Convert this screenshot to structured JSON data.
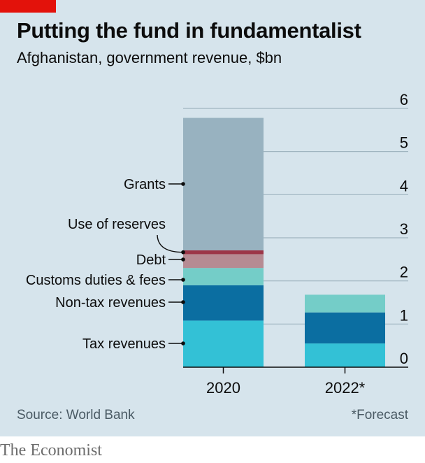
{
  "header": {
    "title": "Putting the fund in fundamentalist",
    "subtitle": "Afghanistan, government revenue, $bn"
  },
  "footer": {
    "source": "Source: World Bank",
    "note": "*Forecast",
    "brand": "The Economist"
  },
  "chart_data": {
    "type": "bar",
    "stacked": true,
    "categories": [
      "2020",
      "2022*"
    ],
    "series": [
      {
        "name": "Tax revenues",
        "color": "#33c1d6",
        "values": [
          1.08,
          0.55
        ]
      },
      {
        "name": "Non-tax revenues",
        "color": "#0b6ea1",
        "values": [
          0.82,
          0.72
        ]
      },
      {
        "name": "Customs duties & fees",
        "color": "#74cdc8",
        "values": [
          0.4,
          0.41
        ]
      },
      {
        "name": "Debt",
        "color": "#b68b93",
        "values": [
          0.32,
          0
        ]
      },
      {
        "name": "Use of reserves",
        "color": "#9c3648",
        "values": [
          0.09,
          0
        ]
      },
      {
        "name": "Grants",
        "color": "#98b2c0",
        "values": [
          3.07,
          0
        ]
      }
    ],
    "yticks": [
      0,
      1,
      2,
      3,
      4,
      5,
      6
    ],
    "ylim": [
      0,
      6
    ],
    "grid": true,
    "legend": "left, labels with leader lines to the 2020 bar"
  }
}
